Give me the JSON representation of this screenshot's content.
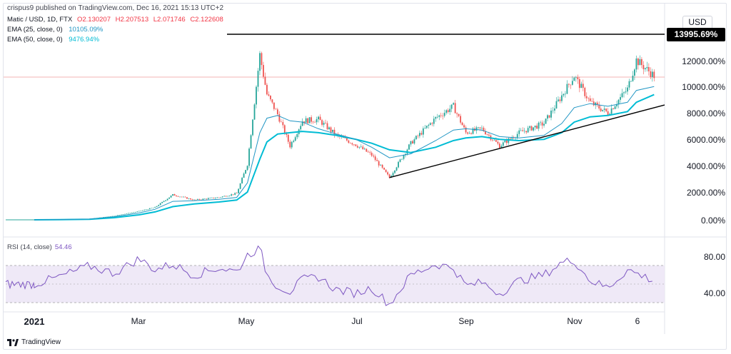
{
  "header": {
    "published_by": "crispus9 published on TradingView.com, Dec 16, 2021 15:13 UTC+2"
  },
  "legend": {
    "symbol": "Matic / USD, 1D, FTX",
    "open": "O2.130207",
    "high": "H2.207513",
    "low": "L2.071746",
    "close": "C2.122608",
    "ema25_label": "EMA (25, close, 0)",
    "ema25_value": "10105.09%",
    "ema50_label": "EMA (50, close, 0)",
    "ema50_value": "9476.94%"
  },
  "rsi": {
    "label": "RSI (14, close)",
    "value": "54.46",
    "color": "#7e57c2",
    "band_upper": 70,
    "band_lower": 30,
    "y_ticks": [
      "80.00",
      "40.00"
    ]
  },
  "price_axis": {
    "currency": "USD",
    "last_level": "13995.69%",
    "ticks": [
      "12000.00%",
      "10000.00%",
      "8000.00%",
      "6000.00%",
      "4000.00%",
      "2000.00%",
      "0.00%"
    ]
  },
  "time_axis": {
    "labels": [
      "2021",
      "Mar",
      "May",
      "Jul",
      "Sep",
      "Nov",
      "6"
    ]
  },
  "branding": {
    "logo_text": "TradingView"
  },
  "colors": {
    "up_candle": "#26a69a",
    "down_candle": "#ef5350",
    "ema25": "#2196c4",
    "ema50": "#00bcd4",
    "trendline": "#000000",
    "rsi_band": "#ede7f6"
  },
  "chart_data": [
    {
      "type": "line",
      "title": "Matic / USD, 1D, FTX",
      "ylabel": "USD (%)",
      "ylim": [
        -200,
        14500
      ],
      "x": [
        "2021-01-01",
        "2021-01-15",
        "2021-02-01",
        "2021-02-15",
        "2021-03-01",
        "2021-03-10",
        "2021-03-20",
        "2021-04-01",
        "2021-04-15",
        "2021-04-25",
        "2021-05-01",
        "2021-05-08",
        "2021-05-12",
        "2021-05-18",
        "2021-05-25",
        "2021-06-01",
        "2021-06-10",
        "2021-06-20",
        "2021-07-01",
        "2021-07-10",
        "2021-07-20",
        "2021-08-01",
        "2021-08-15",
        "2021-08-25",
        "2021-09-01",
        "2021-09-10",
        "2021-09-20",
        "2021-10-01",
        "2021-10-15",
        "2021-10-25",
        "2021-11-01",
        "2021-11-10",
        "2021-11-20",
        "2021-12-01",
        "2021-12-06",
        "2021-12-16"
      ],
      "series": [
        {
          "name": "Matic / USD",
          "values": [
            0,
            30,
            80,
            300,
            650,
            950,
            1900,
            1500,
            1700,
            2000,
            4200,
            12500,
            9500,
            8000,
            5600,
            7500,
            7600,
            6400,
            5700,
            4900,
            3200,
            5800,
            7700,
            8600,
            6600,
            6900,
            5600,
            6600,
            7300,
            9400,
            10900,
            8900,
            8100,
            9900,
            12100,
            10900
          ]
        },
        {
          "name": "EMA (25, close, 0)",
          "values": [
            0,
            20,
            60,
            240,
            520,
            800,
            1400,
            1450,
            1550,
            1700,
            2800,
            6600,
            7700,
            7900,
            7500,
            7400,
            6900,
            6500,
            6100,
            5500,
            4700,
            5000,
            6000,
            6800,
            6900,
            6800,
            6300,
            6200,
            6400,
            7300,
            8500,
            8800,
            8600,
            8900,
            9800,
            10100
          ]
        },
        {
          "name": "EMA (50, close, 0)",
          "values": [
            0,
            10,
            40,
            160,
            380,
            600,
            1000,
            1200,
            1350,
            1500,
            2100,
            4600,
            5900,
            6500,
            6600,
            6700,
            6600,
            6400,
            6100,
            5800,
            5300,
            5100,
            5500,
            6000,
            6200,
            6300,
            6100,
            6000,
            6100,
            6600,
            7400,
            7800,
            7900,
            8200,
            8900,
            9480
          ]
        }
      ],
      "levels": [
        {
          "label": "13995.69%",
          "value": 13995.69
        }
      ],
      "trendline": {
        "from": [
          "2021-07-20",
          3200
        ],
        "to": [
          "2021-12-31",
          8700
        ]
      }
    },
    {
      "type": "line",
      "title": "RSI (14, close)",
      "ylim": [
        20,
        95
      ],
      "bands": [
        30,
        70
      ],
      "series": [
        {
          "name": "RSI (14, close)",
          "values": [
            50,
            58,
            70,
            62,
            78,
            66,
            72,
            60,
            68,
            64,
            82,
            90,
            60,
            48,
            42,
            55,
            58,
            44,
            40,
            46,
            28,
            60,
            72,
            68,
            48,
            52,
            40,
            54,
            60,
            74,
            76,
            54,
            46,
            66,
            62,
            54
          ]
        }
      ]
    }
  ]
}
